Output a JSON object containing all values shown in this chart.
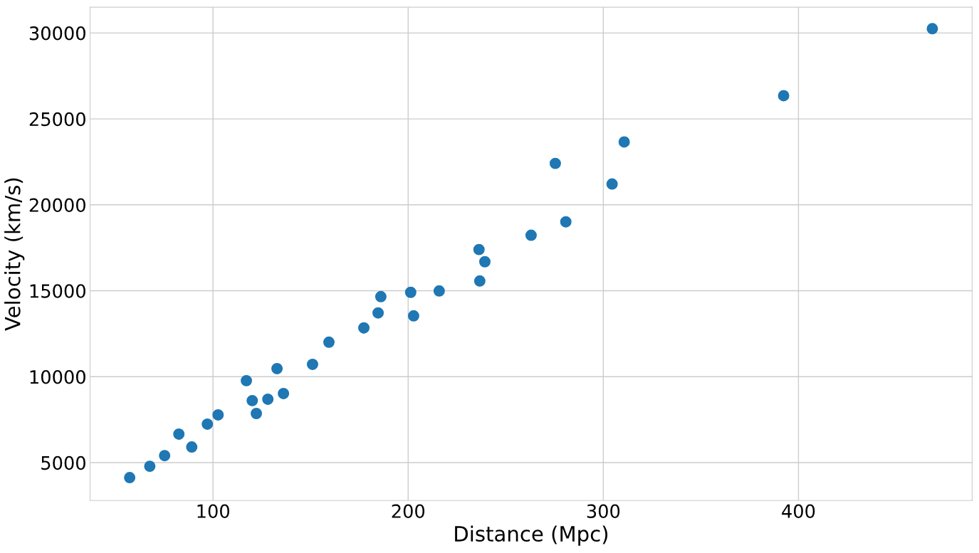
{
  "chart_data": {
    "type": "scatter",
    "xlabel": "Distance (Mpc)",
    "ylabel": "Velocity (km/s)",
    "x": [
      57.3,
      67.6,
      75.2,
      82.5,
      89.1,
      97.1,
      102.6,
      117.1,
      120.1,
      122.2,
      128.1,
      132.8,
      136.1,
      151.0,
      159.4,
      177.3,
      184.6,
      186.0,
      201.3,
      202.8,
      215.9,
      236.3,
      236.7,
      239.3,
      263.0,
      275.4,
      280.8,
      304.5,
      310.7,
      392.4,
      468.6
    ],
    "series": [
      {
        "color": "#1f77b4",
        "values": [
          4130,
          4790,
          5410,
          6660,
          5910,
          7240,
          7780,
          9770,
          8610,
          7860,
          8690,
          10470,
          9020,
          10720,
          12010,
          12840,
          13710,
          14660,
          14910,
          13540,
          14990,
          17400,
          15570,
          16690,
          18230,
          22410,
          19010,
          21210,
          23660,
          26350,
          30250
        ]
      }
    ],
    "xlim": [
      37,
      489
    ],
    "ylim": [
      2800,
      31500
    ],
    "xticks": [
      100,
      200,
      300,
      400
    ],
    "yticks": [
      5000,
      10000,
      15000,
      20000,
      25000,
      30000
    ],
    "grid": true,
    "marker": "circle"
  }
}
